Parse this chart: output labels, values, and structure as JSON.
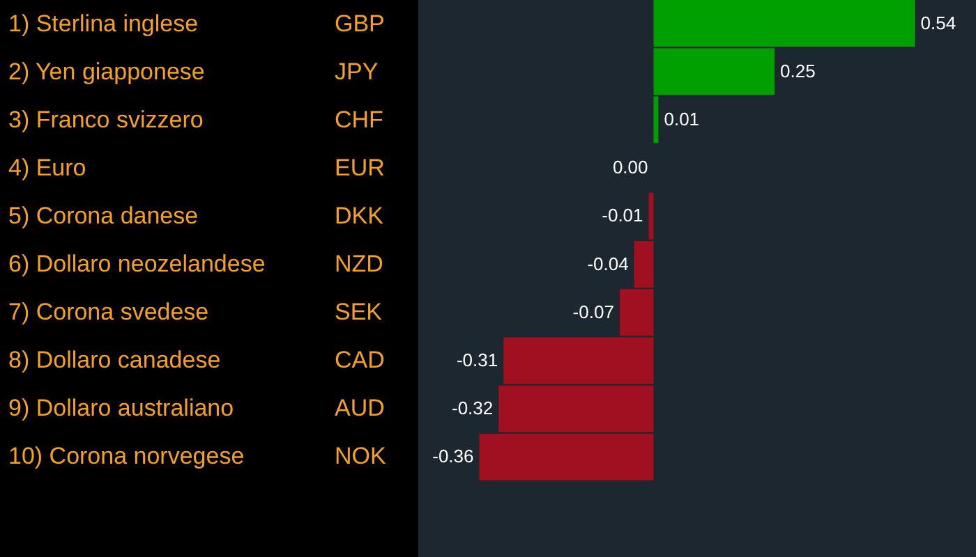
{
  "chart_data": {
    "type": "bar",
    "orientation": "horizontal",
    "categories": [
      "1) Sterlina inglese",
      "2) Yen giapponese",
      "3) Franco svizzero",
      "4) Euro",
      "5) Corona danese",
      "6) Dollaro neozelandese",
      "7) Corona svedese",
      "8) Dollaro canadese",
      "9) Dollaro australiano",
      "10) Corona norvegese"
    ],
    "y2_categories": [
      "GBP",
      "JPY",
      "CHF",
      "EUR",
      "DKK",
      "NZD",
      "SEK",
      "CAD",
      "AUD",
      "NOK"
    ],
    "values": [
      0.54,
      0.25,
      0.01,
      0.0,
      -0.01,
      -0.04,
      -0.07,
      -0.31,
      -0.32,
      -0.36
    ],
    "value_labels": [
      "0.54",
      "0.25",
      "0.01",
      "0.00",
      "-0.01",
      "-0.04",
      "-0.07",
      "-0.31",
      "-0.32",
      "-0.36"
    ],
    "colors": [
      "#00a000",
      "#00a000",
      "#00a000",
      "#a01020",
      "#a01020",
      "#a01020",
      "#a01020",
      "#a01020",
      "#a01020",
      "#a01020"
    ]
  }
}
